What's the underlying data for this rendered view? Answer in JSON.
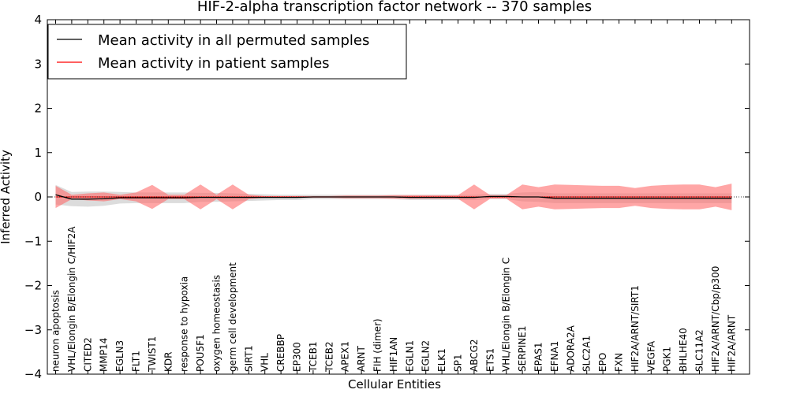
{
  "chart_data": {
    "type": "line",
    "title": "HIF-2-alpha transcription factor network -- 370 samples",
    "xlabel": "Cellular Entities",
    "ylabel": "Inferred Activity",
    "ylim": [
      -4,
      4
    ],
    "yticks": [
      -4,
      -3,
      -2,
      -1,
      0,
      1,
      2,
      3,
      4
    ],
    "ytick_labels": [
      "−4",
      "−3",
      "−2",
      "−1",
      "0",
      "1",
      "2",
      "3",
      "4"
    ],
    "grid": false,
    "legend_position": "top-left",
    "categories": [
      "neuron apoptosis",
      "VHL/Elongin B/Elongin C/HIF2A",
      "CITED2",
      "MMP14",
      "EGLN3",
      "FLT1",
      "TWIST1",
      "KDR",
      "response to hypoxia",
      "POU5F1",
      "oxygen homeostasis",
      "germ cell development",
      "SIRT1",
      "VHL",
      "CREBBP",
      "EP300",
      "TCEB1",
      "TCEB2",
      "APEX1",
      "ARNT",
      "FIH (dimer)",
      "HIF1AN",
      "EGLN1",
      "EGLN2",
      "ELK1",
      "SP1",
      "ABCG2",
      "ETS1",
      "VHL/Elongin B/Elongin C",
      "SERPINE1",
      "EPAS1",
      "EFNA1",
      "ADORA2A",
      "SLC2A1",
      "EPO",
      "FXN",
      "HIF2A/ARNT/SIRT1",
      "VEGFA",
      "PGK1",
      "BHLHE40",
      "SLC11A2",
      "HIF2A/ARNT/Cbp/p300",
      "HIF2A/ARNT"
    ],
    "series": [
      {
        "name": "Mean activity in all permuted samples",
        "color": "#000000",
        "band_color": "#c0c0c0",
        "values": [
          0.05,
          -0.05,
          -0.05,
          -0.04,
          -0.02,
          -0.02,
          -0.02,
          -0.02,
          -0.02,
          -0.01,
          -0.01,
          -0.01,
          -0.01,
          -0.01,
          -0.01,
          -0.01,
          0.0,
          0.0,
          0.0,
          0.0,
          0.0,
          0.0,
          -0.01,
          -0.01,
          -0.01,
          -0.01,
          -0.01,
          0.01,
          0.01,
          0.0,
          0.0,
          -0.03,
          -0.03,
          -0.03,
          -0.03,
          -0.03,
          -0.03,
          -0.03,
          -0.03,
          -0.03,
          -0.03,
          -0.03,
          -0.03
        ],
        "band": [
          0.22,
          0.16,
          0.17,
          0.16,
          0.13,
          0.12,
          0.12,
          0.12,
          0.12,
          0.1,
          0.1,
          0.09,
          0.08,
          0.07,
          0.06,
          0.06,
          0.05,
          0.05,
          0.05,
          0.05,
          0.05,
          0.05,
          0.06,
          0.06,
          0.06,
          0.06,
          0.06,
          0.06,
          0.06,
          0.1,
          0.11,
          0.11,
          0.11,
          0.11,
          0.11,
          0.11,
          0.11,
          0.11,
          0.11,
          0.11,
          0.11,
          0.11,
          0.11
        ]
      },
      {
        "name": "Mean activity in patient samples",
        "color": "#ff0000",
        "band_color": "#ff6b6b",
        "values": [
          0.0,
          0.0,
          0.0,
          0.0,
          0.0,
          0.0,
          0.0,
          0.0,
          0.0,
          0.0,
          0.0,
          0.0,
          0.0,
          0.0,
          0.0,
          0.0,
          0.0,
          0.0,
          0.0,
          0.0,
          0.0,
          0.0,
          0.0,
          0.0,
          0.0,
          0.0,
          0.0,
          0.0,
          0.0,
          0.0,
          0.0,
          0.0,
          0.0,
          0.0,
          0.0,
          0.0,
          0.0,
          0.0,
          0.0,
          0.0,
          0.0,
          0.0,
          0.0
        ],
        "band": [
          0.25,
          0.05,
          0.08,
          0.1,
          0.05,
          0.1,
          0.27,
          0.05,
          0.05,
          0.28,
          0.05,
          0.28,
          0.05,
          0.02,
          0.02,
          0.02,
          0.02,
          0.02,
          0.03,
          0.03,
          0.03,
          0.04,
          0.04,
          0.04,
          0.04,
          0.04,
          0.28,
          0.04,
          0.04,
          0.28,
          0.22,
          0.28,
          0.27,
          0.26,
          0.25,
          0.25,
          0.2,
          0.25,
          0.27,
          0.28,
          0.28,
          0.22,
          0.3
        ]
      }
    ]
  }
}
